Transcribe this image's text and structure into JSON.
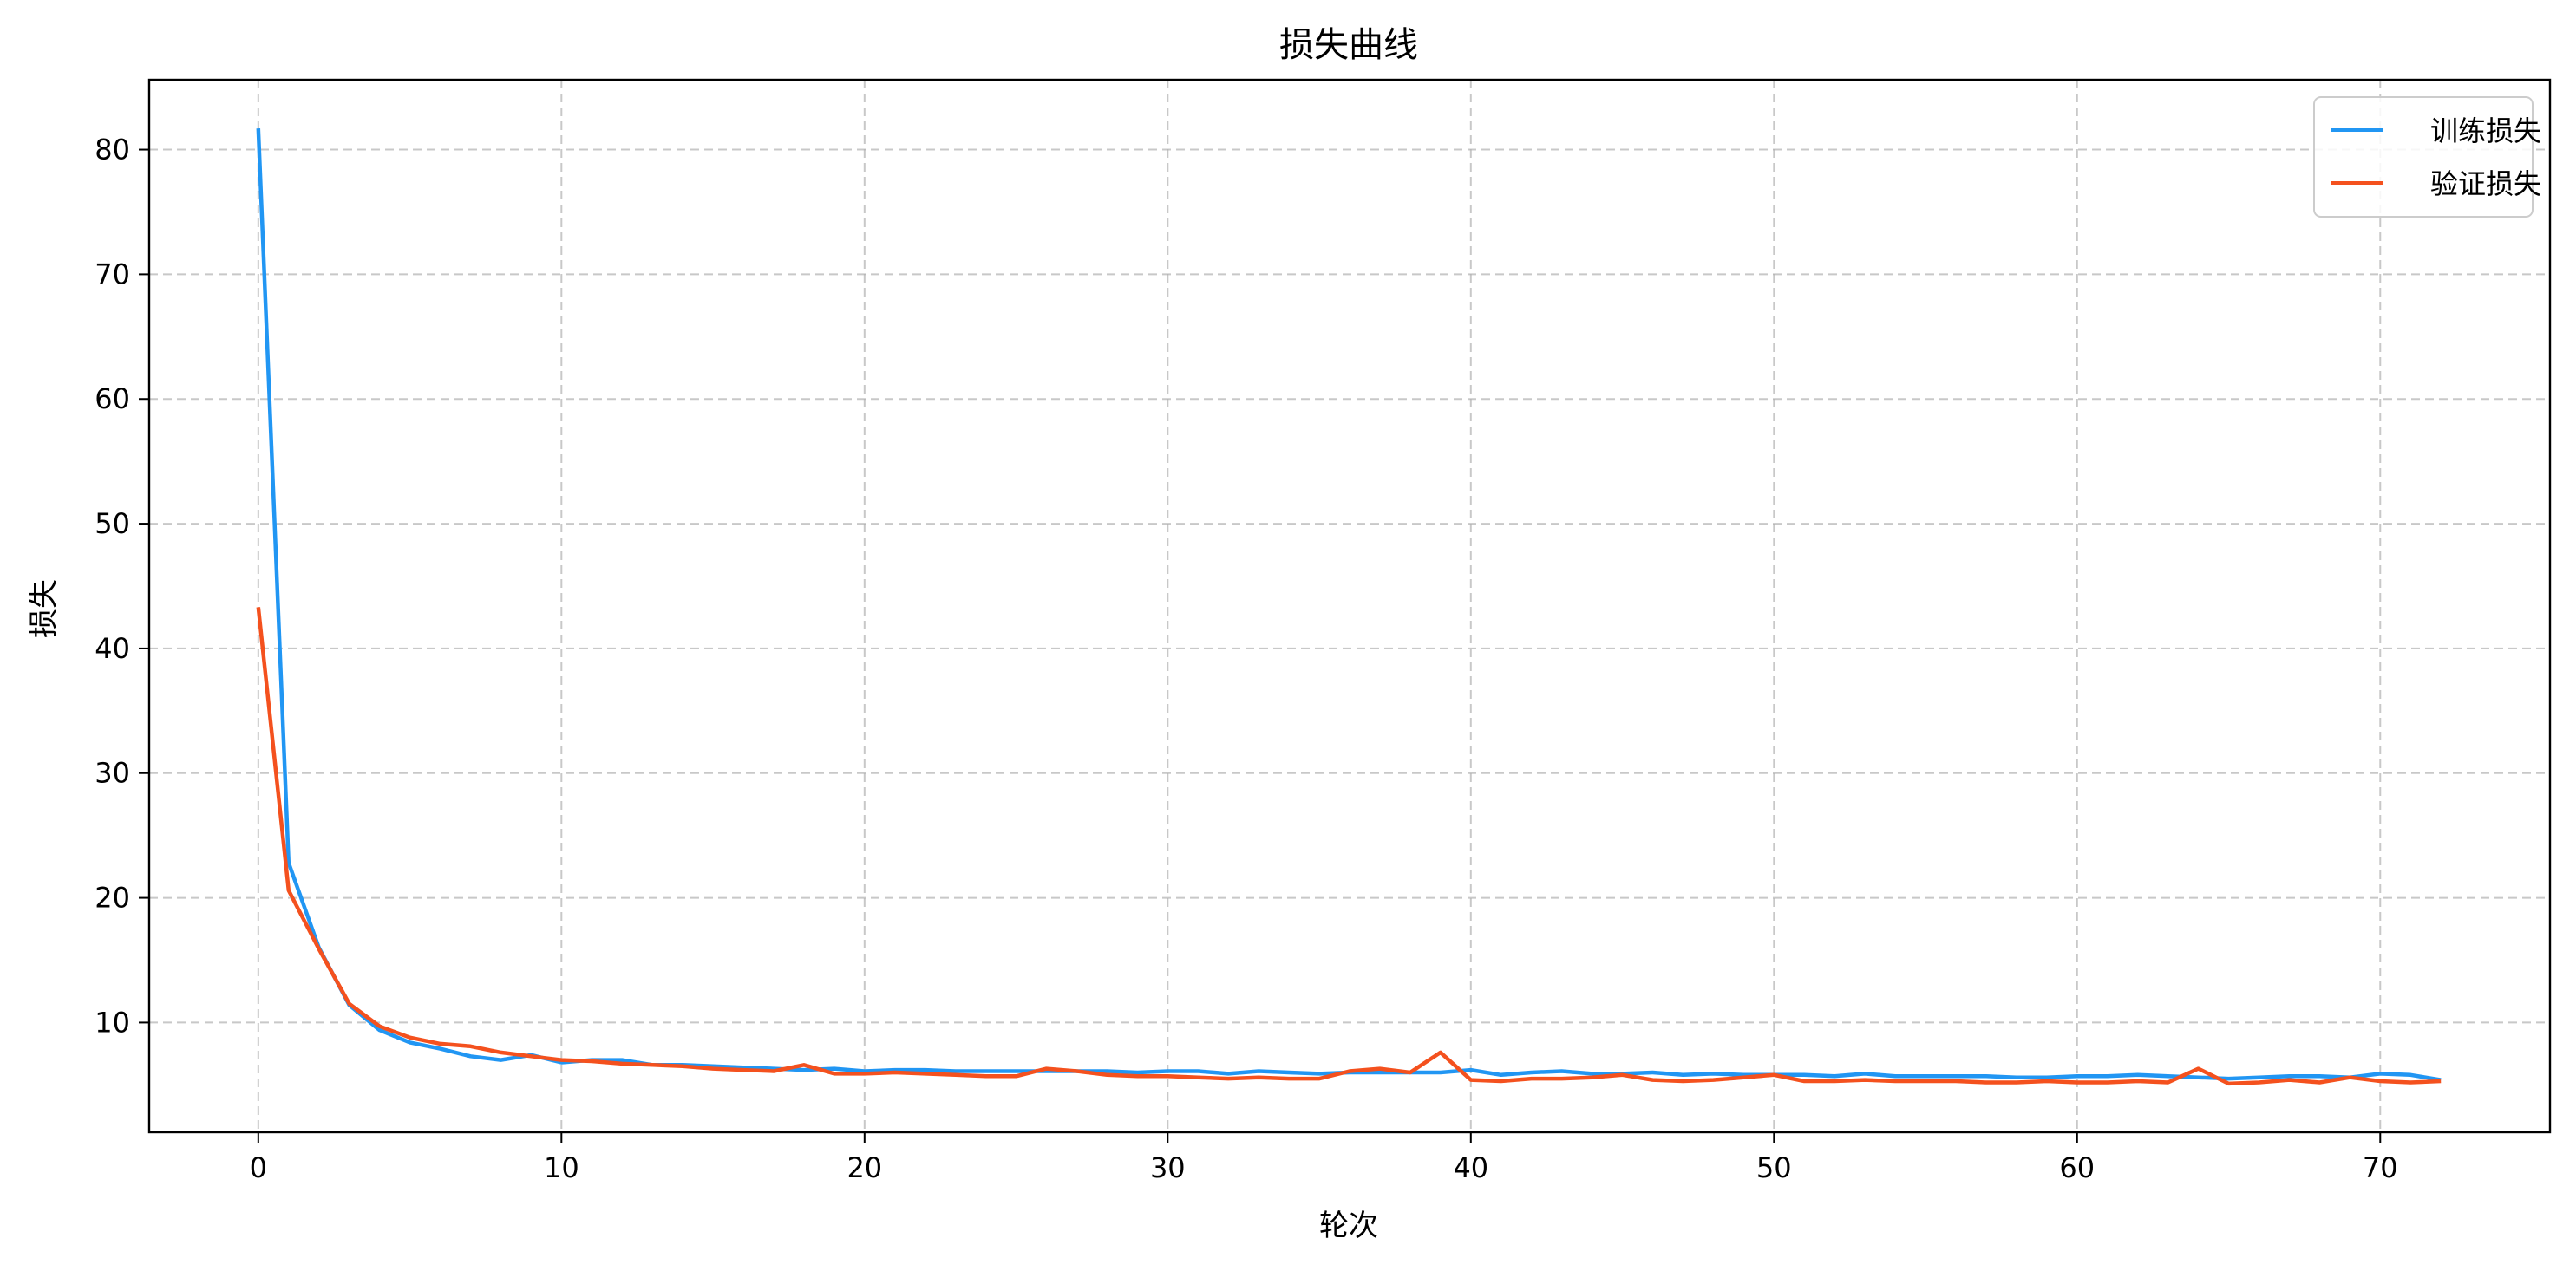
{
  "chart_data": {
    "type": "line",
    "title": "损失曲线",
    "xlabel": "轮次",
    "ylabel": "损失",
    "xlim": [
      -3.6,
      75.6
    ],
    "ylim": [
      1.2,
      85.6
    ],
    "xticks": [
      0,
      10,
      20,
      30,
      40,
      50,
      60,
      70
    ],
    "yticks": [
      10,
      20,
      30,
      40,
      50,
      60,
      70,
      80
    ],
    "grid": true,
    "legend_position": "top-right",
    "x": [
      0,
      1,
      2,
      3,
      4,
      5,
      6,
      7,
      8,
      9,
      10,
      11,
      12,
      13,
      14,
      15,
      16,
      17,
      18,
      19,
      20,
      21,
      22,
      23,
      24,
      25,
      26,
      27,
      28,
      29,
      30,
      31,
      32,
      33,
      34,
      35,
      36,
      37,
      38,
      39,
      40,
      41,
      42,
      43,
      44,
      45,
      46,
      47,
      48,
      49,
      50,
      51,
      52,
      53,
      54,
      55,
      56,
      57,
      58,
      59,
      60,
      61,
      62,
      63,
      64,
      65,
      66,
      67,
      68,
      69,
      70,
      71,
      72
    ],
    "series": [
      {
        "name": "训练损失",
        "color": "#2196F3",
        "values": [
          81.7,
          22.8,
          16.0,
          11.4,
          9.4,
          8.4,
          7.9,
          7.3,
          7.0,
          7.4,
          6.8,
          7.0,
          7.0,
          6.6,
          6.6,
          6.5,
          6.4,
          6.3,
          6.2,
          6.3,
          6.1,
          6.2,
          6.2,
          6.1,
          6.1,
          6.1,
          6.1,
          6.1,
          6.1,
          6.0,
          6.1,
          6.1,
          5.9,
          6.1,
          6.0,
          5.9,
          6.0,
          6.0,
          6.0,
          6.0,
          6.2,
          5.8,
          6.0,
          6.1,
          5.9,
          5.9,
          6.0,
          5.8,
          5.9,
          5.8,
          5.8,
          5.8,
          5.7,
          5.9,
          5.7,
          5.7,
          5.7,
          5.7,
          5.6,
          5.6,
          5.7,
          5.7,
          5.8,
          5.7,
          5.6,
          5.5,
          5.6,
          5.7,
          5.7,
          5.6,
          5.9,
          5.8,
          5.4
        ]
      },
      {
        "name": "验证损失",
        "color": "#F4511E",
        "values": [
          43.3,
          20.6,
          15.9,
          11.5,
          9.7,
          8.8,
          8.3,
          8.1,
          7.6,
          7.3,
          7.0,
          6.9,
          6.7,
          6.6,
          6.5,
          6.3,
          6.2,
          6.1,
          6.6,
          5.9,
          5.9,
          6.0,
          5.9,
          5.8,
          5.7,
          5.7,
          6.3,
          6.1,
          5.8,
          5.7,
          5.7,
          5.6,
          5.5,
          5.6,
          5.5,
          5.5,
          6.1,
          6.3,
          6.0,
          7.6,
          5.4,
          5.3,
          5.5,
          5.5,
          5.6,
          5.8,
          5.4,
          5.3,
          5.4,
          5.6,
          5.8,
          5.3,
          5.3,
          5.4,
          5.3,
          5.3,
          5.3,
          5.2,
          5.2,
          5.3,
          5.2,
          5.2,
          5.3,
          5.2,
          6.3,
          5.1,
          5.2,
          5.4,
          5.2,
          5.6,
          5.3,
          5.2,
          5.3
        ]
      }
    ]
  }
}
